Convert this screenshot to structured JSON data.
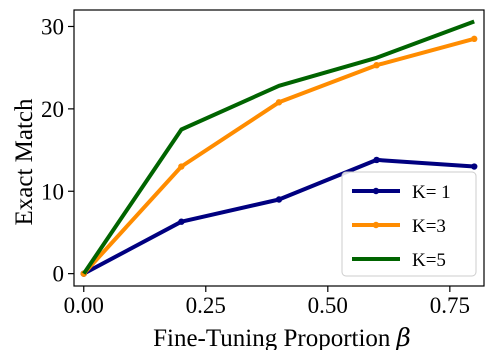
{
  "chart_data": {
    "type": "line",
    "xlabel": "Fine-Tuning Proportion",
    "xlabel_symbol": "β",
    "ylabel": "Exact Match",
    "xlim": [
      -0.02,
      0.82
    ],
    "ylim": [
      -1.5,
      32
    ],
    "xticks": [
      0.0,
      0.25,
      0.5,
      0.75
    ],
    "xtick_labels": [
      "0.00",
      "0.25",
      "0.50",
      "0.75"
    ],
    "yticks": [
      0,
      10,
      20,
      30
    ],
    "ytick_labels": [
      "0",
      "10",
      "20",
      "30"
    ],
    "grid": false,
    "legend_position": "lower-right",
    "x": [
      0.0,
      0.2,
      0.4,
      0.6,
      0.8
    ],
    "series": [
      {
        "name": "K= 1",
        "color": "#000080",
        "marker": "dot",
        "values": [
          0.0,
          6.3,
          9.0,
          13.8,
          13.0
        ]
      },
      {
        "name": "K=3",
        "color": "#ff8c00",
        "marker": "dot",
        "values": [
          0.0,
          13.0,
          20.8,
          25.3,
          28.5
        ]
      },
      {
        "name": "K=5",
        "color": "#006400",
        "marker": "none",
        "values": [
          0.0,
          17.5,
          22.8,
          26.2,
          30.6
        ]
      }
    ]
  }
}
